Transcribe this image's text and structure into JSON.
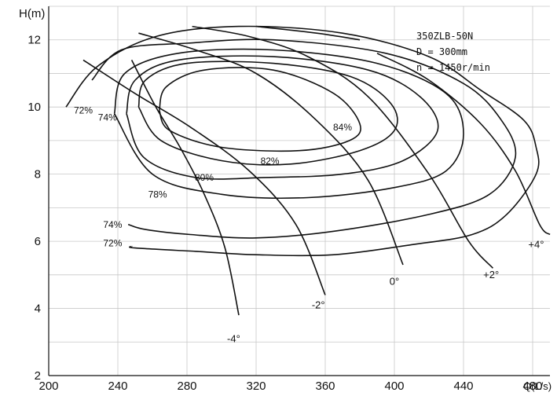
{
  "chart_data": {
    "type": "line",
    "title_lines": [
      "350ZLB-50N",
      "D = 300mm",
      "n = 1450r/min"
    ],
    "xlabel": "Q(L/s)",
    "ylabel": "H(m)",
    "xlim": [
      200,
      490
    ],
    "ylim": [
      2,
      13
    ],
    "xticks": [
      "200",
      "240",
      "280",
      "320",
      "360",
      "400",
      "440",
      "480"
    ],
    "yticks": [
      "2",
      "4",
      "6",
      "8",
      "10",
      "12"
    ],
    "grid": true,
    "blade_angle_curves": [
      {
        "label": "-4°",
        "points": [
          [
            248,
            11.4
          ],
          [
            262,
            10.0
          ],
          [
            276,
            8.8
          ],
          [
            290,
            7.4
          ],
          [
            302,
            5.8
          ],
          [
            310,
            3.8
          ]
        ],
        "label_at": [
          307,
          3.0
        ]
      },
      {
        "label": "-2°",
        "points": [
          [
            220,
            11.4
          ],
          [
            250,
            10.4
          ],
          [
            282,
            9.4
          ],
          [
            316,
            8.1
          ],
          [
            343,
            6.5
          ],
          [
            360,
            4.4
          ]
        ],
        "label_at": [
          356,
          4.0
        ]
      },
      {
        "label": "0°",
        "points": [
          [
            252,
            12.2
          ],
          [
            285,
            11.7
          ],
          [
            320,
            11.0
          ],
          [
            355,
            9.6
          ],
          [
            385,
            7.8
          ],
          [
            405,
            5.3
          ]
        ],
        "label_at": [
          400,
          4.7
        ]
      },
      {
        "label": "+2°",
        "points": [
          [
            283,
            12.4
          ],
          [
            316,
            12.1
          ],
          [
            350,
            11.5
          ],
          [
            385,
            10.3
          ],
          [
            420,
            8.0
          ],
          [
            443,
            6.0
          ],
          [
            457,
            5.2
          ]
        ],
        "label_at": [
          456,
          4.9
        ]
      },
      {
        "label": "+4°",
        "points": [
          [
            320,
            12.4
          ],
          [
            355,
            12.2
          ],
          [
            380,
            12.0
          ]
        ]
      },
      {
        "label": "+4°",
        "points": [
          [
            390,
            11.6
          ],
          [
            420,
            10.8
          ],
          [
            450,
            9.5
          ],
          [
            470,
            8.1
          ],
          [
            484,
            6.5
          ],
          [
            490,
            6.2
          ]
        ],
        "label_at": [
          482,
          5.8
        ]
      }
    ],
    "efficiency_contours": [
      {
        "label": "84%",
        "label_at": [
          370,
          9.3
        ],
        "points": [
          [
            264,
            9.9
          ],
          [
            268,
            10.6
          ],
          [
            290,
            11.1
          ],
          [
            330,
            11.1
          ],
          [
            365,
            10.4
          ],
          [
            380,
            9.5
          ],
          [
            374,
            9.0
          ],
          [
            345,
            8.7
          ],
          [
            300,
            8.8
          ],
          [
            270,
            9.3
          ],
          [
            264,
            9.9
          ]
        ]
      },
      {
        "label": "82%",
        "label_at": [
          328,
          8.3
        ],
        "points": [
          [
            252,
            10.0
          ],
          [
            256,
            10.8
          ],
          [
            280,
            11.3
          ],
          [
            330,
            11.3
          ],
          [
            375,
            10.9
          ],
          [
            398,
            10.1
          ],
          [
            400,
            9.3
          ],
          [
            380,
            8.7
          ],
          [
            340,
            8.3
          ],
          [
            300,
            8.4
          ],
          [
            265,
            9.0
          ],
          [
            252,
            10.0
          ]
        ]
      },
      {
        "label": "80%",
        "label_at": [
          290,
          7.8
        ],
        "points": [
          [
            245,
            9.8
          ],
          [
            250,
            10.8
          ],
          [
            275,
            11.4
          ],
          [
            330,
            11.5
          ],
          [
            385,
            11.1
          ],
          [
            415,
            10.3
          ],
          [
            425,
            9.3
          ],
          [
            405,
            8.4
          ],
          [
            370,
            8.0
          ],
          [
            325,
            7.9
          ],
          [
            285,
            7.9
          ],
          [
            255,
            8.5
          ],
          [
            245,
            9.8
          ]
        ]
      },
      {
        "label": "78%",
        "label_at": [
          263,
          7.3
        ],
        "points": [
          [
            238,
            9.8
          ],
          [
            244,
            11.0
          ],
          [
            275,
            11.6
          ],
          [
            330,
            11.7
          ],
          [
            390,
            11.3
          ],
          [
            430,
            10.4
          ],
          [
            440,
            9.2
          ],
          [
            430,
            8.1
          ],
          [
            400,
            7.6
          ],
          [
            350,
            7.3
          ],
          [
            300,
            7.4
          ],
          [
            260,
            8.0
          ],
          [
            238,
            9.8
          ]
        ]
      },
      {
        "label": "74%",
        "label_at": [
          237,
          6.4
        ],
        "points": [
          [
            225,
            10.8
          ],
          [
            242,
            11.7
          ],
          [
            280,
            11.9
          ],
          [
            330,
            12.0
          ],
          [
            395,
            11.6
          ],
          [
            440,
            10.7
          ],
          [
            462,
            9.6
          ],
          [
            470,
            8.5
          ],
          [
            455,
            7.4
          ],
          [
            420,
            6.8
          ],
          [
            365,
            6.3
          ],
          [
            320,
            6.1
          ],
          [
            282,
            6.2
          ],
          [
            256,
            6.35
          ],
          [
            246,
            6.5
          ]
        ]
      },
      {
        "label": "72%",
        "label_at": [
          237,
          5.85
        ],
        "points": [
          [
            210,
            10.0
          ],
          [
            228,
            11.2
          ],
          [
            262,
            12.1
          ],
          [
            310,
            12.4
          ],
          [
            370,
            12.2
          ],
          [
            420,
            11.5
          ],
          [
            450,
            10.5
          ],
          [
            475,
            9.6
          ],
          [
            482,
            8.8
          ],
          [
            482,
            8.0
          ],
          [
            465,
            6.8
          ],
          [
            445,
            6.2
          ],
          [
            410,
            5.9
          ],
          [
            365,
            5.6
          ],
          [
            320,
            5.6
          ],
          [
            285,
            5.7
          ],
          [
            250,
            5.8
          ],
          [
            248,
            5.85
          ]
        ]
      }
    ],
    "loop_labels": [
      {
        "text": "72%",
        "at": [
          220,
          9.8
        ]
      },
      {
        "text": "74%",
        "at": [
          234,
          9.6
        ]
      }
    ]
  }
}
